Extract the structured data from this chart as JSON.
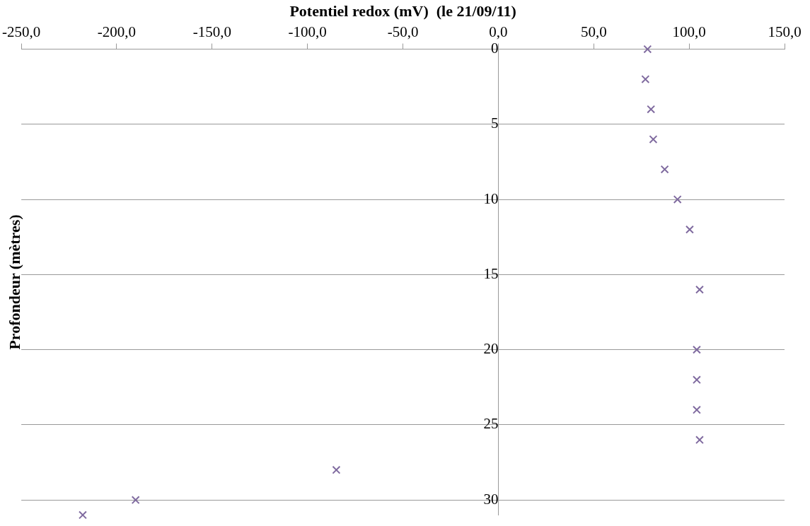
{
  "chart_data": {
    "type": "scatter",
    "xlabel": "Potentiel redox (mV)  (le 21/09/11)",
    "ylabel": "Profondeur (mètres)",
    "series": [
      {
        "color": "#7f6a9f",
        "x": [
          78.2,
          77.1,
          80,
          81.2,
          87.2,
          93.9,
          100.3,
          105.5,
          104,
          104,
          104,
          105.5,
          -84.9,
          -190.1,
          -217.8
        ],
        "values": [
          0,
          2,
          4,
          6,
          8,
          10,
          12,
          16,
          20,
          22,
          24,
          26,
          28,
          30,
          31
        ]
      }
    ],
    "xlim": [
      -250,
      150
    ],
    "xticks": [
      {
        "value": -250,
        "label": "-250,0"
      },
      {
        "value": -200,
        "label": "-200,0"
      },
      {
        "value": -150,
        "label": "-150,0"
      },
      {
        "value": -100,
        "label": "-100,0"
      },
      {
        "value": -50,
        "label": "-50,0"
      },
      {
        "value": 0,
        "label": "0,0"
      },
      {
        "value": 50,
        "label": "50,0"
      },
      {
        "value": 100,
        "label": "100,0"
      },
      {
        "value": 150,
        "label": "150,0"
      }
    ],
    "ylim": [
      31,
      0
    ],
    "yticks": [
      0,
      5,
      10,
      15,
      20,
      25,
      30
    ],
    "grid": "y",
    "marker": "cross",
    "legend": false
  }
}
